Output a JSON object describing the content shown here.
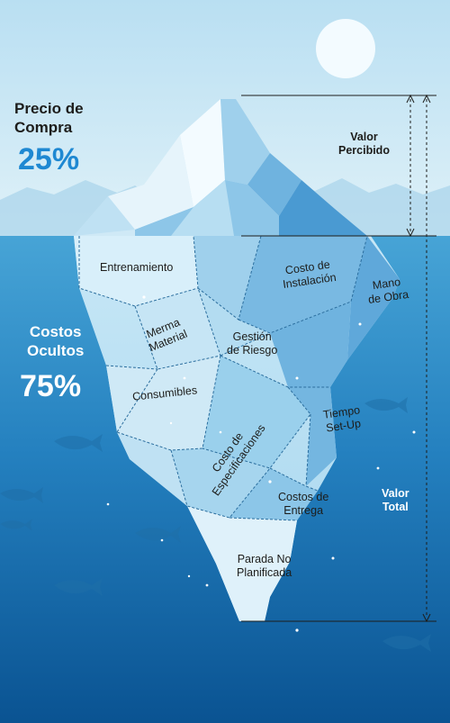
{
  "above": {
    "label_line1": "Precio de",
    "label_line2": "Compra",
    "percent": "25%"
  },
  "below": {
    "label_line1": "Costos",
    "label_line2": "Ocultos",
    "percent": "75%"
  },
  "valor_percibido": {
    "line1": "Valor",
    "line2": "Percibido"
  },
  "valor_total": {
    "line1": "Valor",
    "line2": "Total"
  },
  "segments": {
    "entrenamiento": [
      "Entrenamiento"
    ],
    "costo_instalacion": [
      "Costo de",
      "Instalación"
    ],
    "mano_obra": [
      "Mano",
      "de Obra"
    ],
    "merma_material": [
      "Merma",
      "Material"
    ],
    "gestion_riesgo": [
      "Gestión",
      "de Riesgo"
    ],
    "consumibles": [
      "Consumibles"
    ],
    "tiempo_setup": [
      "Tiempo",
      "Set-Up"
    ],
    "costo_especificaciones": [
      "Costo de",
      "Especificaciones"
    ],
    "costos_entrega": [
      "Costos de",
      "Entrega"
    ],
    "parada_no_planificada": [
      "Parada No",
      "Planificada"
    ]
  },
  "colors": {
    "sky_top": "#bfe2f3",
    "sky_bottom": "#d8eef7",
    "sea_top": "#3f9bd0",
    "sea_bottom": "#0c5a99",
    "accent_blue": "#1e88d2",
    "ice_light": "#eaf6fc",
    "ice_dark": "#4aa3d8"
  }
}
